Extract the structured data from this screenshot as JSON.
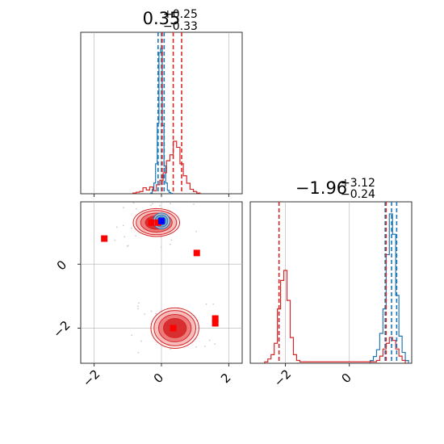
{
  "chart_data": {
    "type": "corner",
    "parameters": [
      {
        "title": {
          "median": "0.35",
          "plus": "+0.25",
          "minus": "−0.33"
        },
        "xlim": [
          -2.4,
          2.4
        ],
        "ticks": [
          -2,
          0,
          2
        ],
        "tick_labels": [
          "−2",
          "0",
          "2"
        ],
        "grid": true
      },
      {
        "title": {
          "median": "−1.96",
          "plus": "+3.12",
          "minus": "−0.24"
        },
        "xlim": [
          -3.1,
          1.95
        ],
        "ticks": [
          -2,
          0
        ],
        "tick_labels": [
          "−2",
          "0"
        ],
        "grid": true
      }
    ],
    "joint": {
      "xlim": [
        -2.4,
        2.4
      ],
      "ylim": [
        -3.1,
        1.95
      ],
      "yticks": [
        -2,
        0
      ],
      "ytick_labels": [
        "−2",
        "0"
      ],
      "red_markers": [
        [
          -1.7,
          0.8
        ],
        [
          -0.3,
          1.3
        ],
        [
          -0.1,
          1.3
        ],
        [
          1.05,
          0.35
        ],
        [
          1.6,
          -1.7
        ],
        [
          1.6,
          -1.85
        ],
        [
          0.35,
          -2.0
        ]
      ],
      "blue_markers": [
        [
          0.0,
          1.35
        ]
      ],
      "red_contours": [
        {
          "cx": -0.15,
          "cy": 1.3,
          "rx": 0.6,
          "ry": 0.38
        },
        {
          "cx": 0.4,
          "cy": -2.0,
          "rx": 0.62,
          "ry": 0.55
        }
      ],
      "blue_contours": [
        {
          "cx": 0.0,
          "cy": 1.35,
          "rx": 0.25,
          "ry": 0.25
        }
      ]
    },
    "marginal_1": {
      "quantile_lines": {
        "blue": [
          -0.1,
          0.0,
          0.08
        ],
        "red": [
          0.02,
          0.35,
          0.6
        ]
      },
      "blue_hist": {
        "x": [
          -0.3,
          -0.25,
          -0.2,
          -0.15,
          -0.1,
          -0.05,
          0.0,
          0.05,
          0.1,
          0.15,
          0.2,
          0.25,
          0.3
        ],
        "y": [
          2,
          10,
          25,
          70,
          165,
          330,
          340,
          160,
          65,
          25,
          8,
          3,
          1
        ]
      },
      "red_hist": {
        "x": [
          -0.8,
          -0.7,
          -0.6,
          -0.5,
          -0.4,
          -0.3,
          -0.2,
          -0.1,
          0.0,
          0.1,
          0.2,
          0.3,
          0.4,
          0.5,
          0.6,
          0.7,
          0.8,
          0.9,
          1.0,
          1.1
        ],
        "y": [
          1,
          2,
          3,
          8,
          5,
          9,
          4,
          12,
          18,
          28,
          44,
          52,
          70,
          62,
          40,
          24,
          14,
          6,
          3,
          1
        ]
      }
    },
    "marginal_2": {
      "quantile_lines": {
        "blue": [
          1.12,
          1.32,
          1.48
        ],
        "red": [
          -2.2,
          1.15
        ]
      },
      "blue_hist": {
        "x": [
          0.7,
          0.8,
          0.9,
          1.0,
          1.1,
          1.2,
          1.3,
          1.4,
          1.5,
          1.6,
          1.7,
          1.8
        ],
        "y": [
          2,
          5,
          10,
          22,
          40,
          80,
          110,
          95,
          50,
          20,
          8,
          2
        ]
      },
      "red_hist": {
        "x": [
          -2.6,
          -2.5,
          -2.4,
          -2.3,
          -2.2,
          -2.1,
          -2.0,
          -1.9,
          -1.8,
          -1.7,
          -1.6,
          -1.5,
          0.8,
          0.9,
          1.0,
          1.1,
          1.2,
          1.3,
          1.4,
          1.5,
          1.6,
          1.7
        ],
        "y": [
          1,
          3,
          6,
          14,
          38,
          58,
          65,
          44,
          18,
          6,
          2,
          1,
          1,
          2,
          5,
          10,
          14,
          18,
          16,
          10,
          5,
          2
        ]
      }
    },
    "colors": {
      "blue": "#1f77b4",
      "red": "#d62728",
      "grid": "#b0b0b0",
      "marker_blue": "#0000ff",
      "marker_red": "#ff0000"
    }
  }
}
